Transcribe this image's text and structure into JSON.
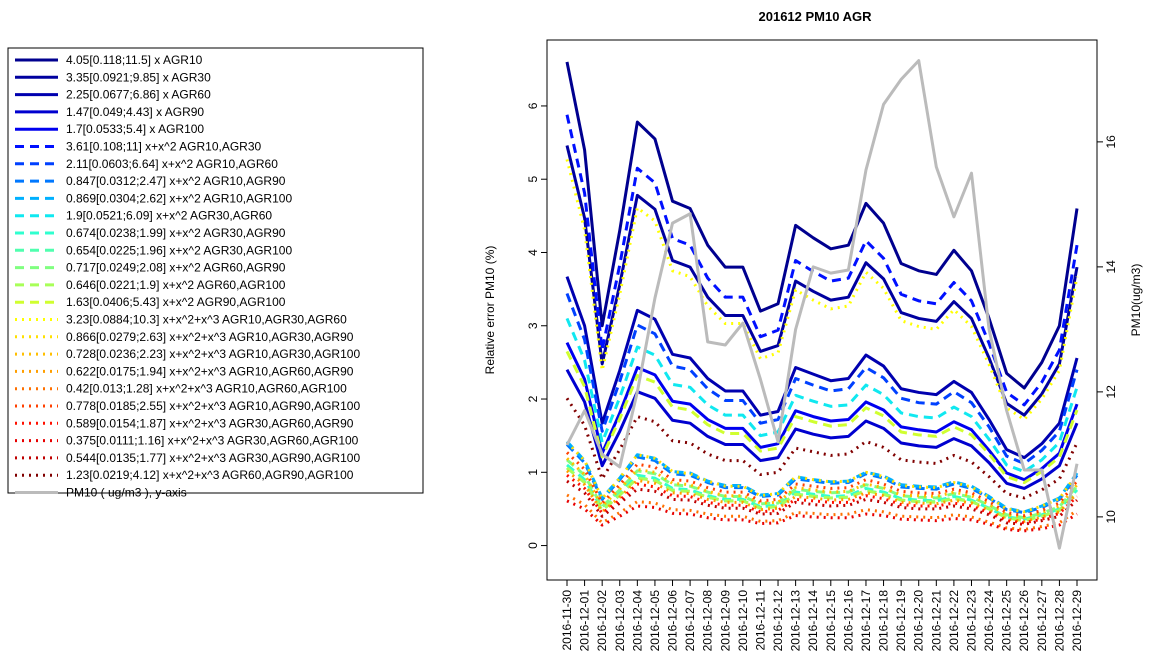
{
  "chart_data": {
    "type": "line",
    "title": "201612 PM10 AGR",
    "ylabel": "Relative error PM10 (%)",
    "y2label": "PM10(ug/m3)",
    "categories": [
      "2016-11-30",
      "2016-12-01",
      "2016-12-02",
      "2016-12-03",
      "2016-12-04",
      "2016-12-05",
      "2016-12-06",
      "2016-12-07",
      "2016-12-08",
      "2016-12-09",
      "2016-12-10",
      "2016-12-11",
      "2016-12-12",
      "2016-12-13",
      "2016-12-14",
      "2016-12-15",
      "2016-12-16",
      "2016-12-17",
      "2016-12-18",
      "2016-12-19",
      "2016-12-20",
      "2016-12-21",
      "2016-12-22",
      "2016-12-23",
      "2016-12-24",
      "2016-12-25",
      "2016-12-26",
      "2016-12-27",
      "2016-12-28",
      "2016-12-29"
    ],
    "ylim": [
      -0.47,
      6.9
    ],
    "yticks": [
      0,
      1,
      2,
      3,
      4,
      5,
      6
    ],
    "y2lim": [
      8.99,
      17.63
    ],
    "y2ticks": [
      10,
      12,
      14,
      16
    ],
    "legend": "outside-left",
    "series": [
      {
        "name": "4.05[0.118;11.5] x AGR10",
        "color": "#00008f",
        "style": "solid",
        "values": [
          6.6,
          5.4,
          3.0,
          4.3,
          5.78,
          5.55,
          4.7,
          4.6,
          4.1,
          3.8,
          3.8,
          3.2,
          3.3,
          4.37,
          4.2,
          4.05,
          4.1,
          4.67,
          4.4,
          3.85,
          3.75,
          3.7,
          4.03,
          3.75,
          3.1,
          2.35,
          2.15,
          2.5,
          3.0,
          4.6
        ]
      },
      {
        "name": "3.35[0.0921;9.85] x AGR30",
        "color": "#00009f",
        "style": "solid",
        "values": [
          5.46,
          4.47,
          2.48,
          3.56,
          4.78,
          4.59,
          3.89,
          3.8,
          3.39,
          3.14,
          3.14,
          2.65,
          2.73,
          3.61,
          3.47,
          3.35,
          3.39,
          3.86,
          3.64,
          3.18,
          3.1,
          3.06,
          3.33,
          3.1,
          2.56,
          1.94,
          1.78,
          2.07,
          2.48,
          3.8
        ]
      },
      {
        "name": "2.25[0.0677;6.86] x AGR60",
        "color": "#0000af",
        "style": "solid",
        "values": [
          3.67,
          3.0,
          1.67,
          2.39,
          3.21,
          3.09,
          2.61,
          2.56,
          2.28,
          2.11,
          2.11,
          1.78,
          1.83,
          2.43,
          2.34,
          2.25,
          2.28,
          2.6,
          2.45,
          2.14,
          2.09,
          2.06,
          2.24,
          2.09,
          1.72,
          1.31,
          1.2,
          1.39,
          1.67,
          2.56
        ]
      },
      {
        "name": "1.47[0.049;4.43] x AGR90",
        "color": "#0000cf",
        "style": "solid",
        "values": [
          2.4,
          1.96,
          1.09,
          1.56,
          2.1,
          2.01,
          1.71,
          1.67,
          1.49,
          1.38,
          1.38,
          1.16,
          1.2,
          1.59,
          1.52,
          1.47,
          1.49,
          1.7,
          1.6,
          1.4,
          1.36,
          1.34,
          1.46,
          1.36,
          1.13,
          0.85,
          0.78,
          0.91,
          1.09,
          1.67
        ]
      },
      {
        "name": "1.7[0.0533;5.4] x AGR100",
        "color": "#0000ef",
        "style": "solid",
        "values": [
          2.77,
          2.27,
          1.26,
          1.81,
          2.43,
          2.33,
          1.97,
          1.93,
          1.72,
          1.6,
          1.6,
          1.34,
          1.39,
          1.84,
          1.76,
          1.7,
          1.72,
          1.96,
          1.85,
          1.62,
          1.58,
          1.55,
          1.69,
          1.58,
          1.3,
          0.99,
          0.9,
          1.05,
          1.26,
          1.93
        ]
      },
      {
        "name": "3.61[0.108;11] x+x^2 AGR10,AGR30",
        "color": "#0010ff",
        "style": "dashed",
        "values": [
          5.88,
          4.81,
          2.67,
          3.83,
          5.15,
          4.95,
          4.19,
          4.1,
          3.65,
          3.39,
          3.39,
          2.85,
          2.94,
          3.89,
          3.74,
          3.61,
          3.65,
          4.16,
          3.92,
          3.43,
          3.34,
          3.3,
          3.59,
          3.34,
          2.76,
          2.09,
          1.92,
          2.23,
          2.67,
          4.1
        ]
      },
      {
        "name": "2.11[0.0603;6.64] x+x^2 AGR10,AGR60",
        "color": "#0040ff",
        "style": "dashed",
        "values": [
          3.44,
          2.81,
          1.56,
          2.24,
          3.01,
          2.89,
          2.45,
          2.4,
          2.14,
          1.98,
          1.98,
          1.67,
          1.72,
          2.28,
          2.19,
          2.11,
          2.14,
          2.43,
          2.29,
          2.01,
          1.95,
          1.93,
          2.1,
          1.95,
          1.62,
          1.22,
          1.12,
          1.3,
          1.56,
          2.4
        ]
      },
      {
        "name": "0.847[0.0312;2.47] x+x^2 AGR10,AGR90",
        "color": "#0078ff",
        "style": "dashed",
        "values": [
          1.38,
          1.13,
          0.63,
          0.9,
          1.21,
          1.16,
          0.98,
          0.96,
          0.86,
          0.79,
          0.79,
          0.67,
          0.69,
          0.91,
          0.88,
          0.85,
          0.86,
          0.98,
          0.92,
          0.8,
          0.78,
          0.77,
          0.84,
          0.78,
          0.65,
          0.49,
          0.45,
          0.52,
          0.63,
          0.96
        ]
      },
      {
        "name": "0.869[0.0304;2.62] x+x^2 AGR10,AGR100",
        "color": "#00b0ff",
        "style": "dashed",
        "values": [
          1.42,
          1.16,
          0.65,
          0.92,
          1.24,
          1.19,
          1.01,
          0.99,
          0.88,
          0.82,
          0.82,
          0.69,
          0.71,
          0.94,
          0.9,
          0.87,
          0.88,
          1.0,
          0.95,
          0.83,
          0.81,
          0.8,
          0.87,
          0.81,
          0.67,
          0.51,
          0.46,
          0.54,
          0.65,
          0.99
        ]
      },
      {
        "name": "1.9[0.0521;6.09] x+x^2 AGR30,AGR60",
        "color": "#10e8f0",
        "style": "dashed",
        "values": [
          3.1,
          2.53,
          1.41,
          2.02,
          2.71,
          2.6,
          2.2,
          2.16,
          1.92,
          1.78,
          1.78,
          1.5,
          1.55,
          2.05,
          1.97,
          1.9,
          1.92,
          2.19,
          2.06,
          1.81,
          1.76,
          1.74,
          1.89,
          1.76,
          1.45,
          1.1,
          1.01,
          1.17,
          1.41,
          2.16
        ]
      },
      {
        "name": "0.674[0.0238;1.99] x+x^2 AGR30,AGR90",
        "color": "#30ffcf",
        "style": "dashed",
        "values": [
          1.1,
          0.9,
          0.5,
          0.71,
          0.96,
          0.92,
          0.78,
          0.76,
          0.68,
          0.63,
          0.63,
          0.53,
          0.55,
          0.73,
          0.7,
          0.67,
          0.68,
          0.78,
          0.73,
          0.64,
          0.62,
          0.61,
          0.67,
          0.62,
          0.51,
          0.39,
          0.36,
          0.42,
          0.5,
          0.76
        ]
      },
      {
        "name": "0.654[0.0225;1.96] x+x^2 AGR30,AGR100",
        "color": "#50ffaf",
        "style": "dashed",
        "values": [
          1.06,
          0.87,
          0.48,
          0.69,
          0.93,
          0.89,
          0.76,
          0.74,
          0.66,
          0.61,
          0.61,
          0.52,
          0.53,
          0.7,
          0.68,
          0.65,
          0.66,
          0.75,
          0.71,
          0.62,
          0.6,
          0.6,
          0.65,
          0.6,
          0.5,
          0.38,
          0.35,
          0.4,
          0.48,
          0.74
        ]
      },
      {
        "name": "0.717[0.0249;2.08] x+x^2 AGR60,AGR90",
        "color": "#80ff80",
        "style": "dashed",
        "values": [
          1.17,
          0.96,
          0.53,
          0.76,
          1.02,
          0.98,
          0.83,
          0.81,
          0.73,
          0.67,
          0.67,
          0.57,
          0.58,
          0.77,
          0.74,
          0.72,
          0.73,
          0.83,
          0.78,
          0.68,
          0.66,
          0.65,
          0.71,
          0.66,
          0.55,
          0.42,
          0.38,
          0.44,
          0.53,
          0.81
        ]
      },
      {
        "name": "0.646[0.0221;1.9] x+x^2 AGR60,AGR100",
        "color": "#a8ff58",
        "style": "dashed",
        "values": [
          1.06,
          0.86,
          0.48,
          0.69,
          0.92,
          0.89,
          0.75,
          0.74,
          0.66,
          0.61,
          0.61,
          0.51,
          0.53,
          0.7,
          0.67,
          0.65,
          0.66,
          0.75,
          0.7,
          0.62,
          0.6,
          0.59,
          0.64,
          0.6,
          0.5,
          0.38,
          0.34,
          0.4,
          0.48,
          0.74
        ]
      },
      {
        "name": "1.63[0.0406;5.43] x+x^2 AGR90,AGR100",
        "color": "#d0ff30",
        "style": "dashed",
        "values": [
          2.65,
          2.17,
          1.21,
          1.73,
          2.32,
          2.23,
          1.89,
          1.85,
          1.65,
          1.53,
          1.53,
          1.29,
          1.33,
          1.76,
          1.69,
          1.63,
          1.65,
          1.88,
          1.77,
          1.55,
          1.51,
          1.49,
          1.62,
          1.51,
          1.25,
          0.94,
          0.86,
          1.01,
          1.21,
          1.85
        ]
      },
      {
        "name": "3.23[0.0884;10.3] x+x^2+x^3 AGR10,AGR30,AGR60",
        "color": "#ffff00",
        "style": "dotted",
        "values": [
          5.27,
          4.31,
          2.39,
          3.43,
          4.61,
          4.43,
          3.75,
          3.67,
          3.27,
          3.03,
          3.03,
          2.55,
          2.63,
          3.49,
          3.35,
          3.23,
          3.27,
          3.73,
          3.51,
          3.07,
          2.99,
          2.95,
          3.22,
          2.99,
          2.47,
          1.88,
          1.72,
          2.0,
          2.39,
          3.67
        ]
      },
      {
        "name": "0.866[0.0279;2.63] x+x^2+x^3 AGR10,AGR30,AGR90",
        "color": "#ffe000",
        "style": "dotted",
        "values": [
          1.41,
          1.16,
          0.64,
          0.92,
          1.24,
          1.19,
          1.01,
          0.98,
          0.88,
          0.81,
          0.81,
          0.68,
          0.71,
          0.94,
          0.9,
          0.87,
          0.88,
          1.0,
          0.94,
          0.82,
          0.8,
          0.79,
          0.86,
          0.8,
          0.66,
          0.5,
          0.46,
          0.54,
          0.64,
          0.98
        ]
      },
      {
        "name": "0.728[0.0236;2.23] x+x^2+x^3 AGR10,AGR30,AGR100",
        "color": "#ffbf00",
        "style": "dotted",
        "values": [
          1.19,
          0.97,
          0.54,
          0.77,
          1.04,
          1.0,
          0.85,
          0.83,
          0.74,
          0.68,
          0.68,
          0.58,
          0.59,
          0.79,
          0.76,
          0.73,
          0.74,
          0.84,
          0.79,
          0.69,
          0.68,
          0.67,
          0.73,
          0.68,
          0.56,
          0.42,
          0.39,
          0.45,
          0.54,
          0.83
        ]
      },
      {
        "name": "0.622[0.0175;1.94] x+x^2+x^3 AGR10,AGR60,AGR90",
        "color": "#ff9f00",
        "style": "dotted",
        "values": [
          1.02,
          0.83,
          0.46,
          0.66,
          0.89,
          0.85,
          0.72,
          0.71,
          0.63,
          0.59,
          0.59,
          0.49,
          0.51,
          0.67,
          0.65,
          0.62,
          0.63,
          0.72,
          0.68,
          0.59,
          0.58,
          0.57,
          0.62,
          0.58,
          0.48,
          0.36,
          0.33,
          0.39,
          0.46,
          0.71
        ]
      },
      {
        "name": "0.42[0.013;1.28] x+x^2+x^3 AGR10,AGR60,AGR100",
        "color": "#ff7000",
        "style": "dotted",
        "values": [
          0.69,
          0.56,
          0.31,
          0.45,
          0.6,
          0.58,
          0.49,
          0.48,
          0.43,
          0.4,
          0.4,
          0.33,
          0.34,
          0.45,
          0.44,
          0.42,
          0.43,
          0.49,
          0.46,
          0.4,
          0.39,
          0.38,
          0.42,
          0.39,
          0.32,
          0.24,
          0.22,
          0.26,
          0.31,
          0.48
        ]
      },
      {
        "name": "0.778[0.0185;2.55] x+x^2+x^3 AGR10,AGR90,AGR100",
        "color": "#ff4000",
        "style": "dotted",
        "values": [
          1.27,
          1.04,
          0.58,
          0.83,
          1.11,
          1.07,
          0.9,
          0.88,
          0.79,
          0.73,
          0.73,
          0.61,
          0.63,
          0.84,
          0.81,
          0.78,
          0.79,
          0.9,
          0.84,
          0.74,
          0.72,
          0.71,
          0.77,
          0.72,
          0.6,
          0.45,
          0.41,
          0.48,
          0.58,
          0.88
        ]
      },
      {
        "name": "0.589[0.0154;1.87] x+x^2+x^3 AGR30,AGR60,AGR90",
        "color": "#ff1000",
        "style": "dotted",
        "values": [
          0.96,
          0.78,
          0.44,
          0.62,
          0.84,
          0.8,
          0.68,
          0.67,
          0.59,
          0.55,
          0.55,
          0.46,
          0.48,
          0.63,
          0.61,
          0.59,
          0.59,
          0.68,
          0.64,
          0.56,
          0.54,
          0.54,
          0.58,
          0.54,
          0.45,
          0.34,
          0.31,
          0.36,
          0.44,
          0.67
        ]
      },
      {
        "name": "0.375[0.0111;1.16] x+x^2+x^3 AGR30,AGR60,AGR100",
        "color": "#e80000",
        "style": "dotted",
        "values": [
          0.61,
          0.5,
          0.28,
          0.4,
          0.54,
          0.52,
          0.44,
          0.43,
          0.38,
          0.35,
          0.35,
          0.3,
          0.31,
          0.41,
          0.39,
          0.38,
          0.38,
          0.43,
          0.41,
          0.36,
          0.35,
          0.34,
          0.37,
          0.35,
          0.29,
          0.22,
          0.2,
          0.23,
          0.28,
          0.43
        ]
      },
      {
        "name": "0.544[0.0135;1.77] x+x^2+x^3 AGR30,AGR90,AGR100",
        "color": "#bf0000",
        "style": "dotted",
        "values": [
          0.88,
          0.72,
          0.4,
          0.58,
          0.77,
          0.74,
          0.63,
          0.62,
          0.55,
          0.51,
          0.51,
          0.43,
          0.44,
          0.59,
          0.56,
          0.54,
          0.55,
          0.63,
          0.59,
          0.52,
          0.5,
          0.5,
          0.54,
          0.5,
          0.42,
          0.31,
          0.29,
          0.34,
          0.4,
          0.62
        ]
      },
      {
        "name": "1.23[0.0219;4.12] x+x^2+x^3 AGR60,AGR90,AGR100",
        "color": "#800000",
        "style": "dotted",
        "values": [
          2.01,
          1.64,
          0.91,
          1.31,
          1.76,
          1.69,
          1.43,
          1.4,
          1.25,
          1.16,
          1.16,
          0.97,
          1.0,
          1.33,
          1.28,
          1.23,
          1.25,
          1.42,
          1.34,
          1.17,
          1.14,
          1.12,
          1.23,
          1.14,
          0.94,
          0.71,
          0.65,
          0.76,
          0.91,
          1.4
        ]
      },
      {
        "name": "PM10 ( ug/m3 ), y-axis",
        "color": "#bbbbbb",
        "style": "solid",
        "axis": "y2",
        "values": [
          11.15,
          11.7,
          11.0,
          10.8,
          12.0,
          13.5,
          14.7,
          14.85,
          12.8,
          12.75,
          13.1,
          12.2,
          11.2,
          13.0,
          14.0,
          13.9,
          13.95,
          15.55,
          16.6,
          17.0,
          17.3,
          15.6,
          14.8,
          15.5,
          13.0,
          11.7,
          10.75,
          10.75,
          9.5,
          10.85
        ]
      }
    ]
  }
}
